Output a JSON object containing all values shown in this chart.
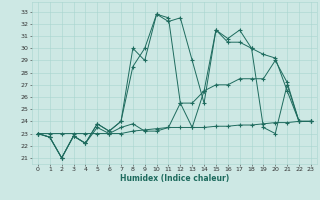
{
  "title": "",
  "xlabel": "Humidex (Indice chaleur)",
  "bg_color": "#cde8e4",
  "grid_color": "#a8d5cf",
  "line_color": "#1e6b5e",
  "xlim": [
    -0.5,
    23.5
  ],
  "ylim": [
    20.5,
    33.8
  ],
  "xticks": [
    0,
    1,
    2,
    3,
    4,
    5,
    6,
    7,
    8,
    9,
    10,
    11,
    12,
    13,
    14,
    15,
    16,
    17,
    18,
    19,
    20,
    21,
    22,
    23
  ],
  "yticks": [
    21,
    22,
    23,
    24,
    25,
    26,
    27,
    28,
    29,
    30,
    31,
    32,
    33
  ],
  "series": [
    [
      23,
      22.7,
      21.0,
      22.8,
      22.2,
      23.8,
      23.2,
      24.0,
      28.5,
      30.0,
      32.8,
      32.2,
      32.5,
      29.0,
      25.5,
      31.5,
      30.8,
      31.5,
      30.0,
      29.5,
      29.2,
      26.5,
      24.0,
      24.0
    ],
    [
      23,
      22.7,
      21.0,
      22.8,
      22.2,
      23.8,
      23.2,
      24.0,
      30.0,
      29.0,
      32.8,
      32.5,
      25.5,
      23.5,
      26.5,
      31.5,
      30.5,
      30.5,
      30.0,
      23.5,
      23.0,
      27.0,
      24.0,
      24.0
    ],
    [
      23,
      23.0,
      23.0,
      23.0,
      23.0,
      23.0,
      23.0,
      23.0,
      23.2,
      23.3,
      23.4,
      23.5,
      23.5,
      23.5,
      23.5,
      23.6,
      23.6,
      23.7,
      23.7,
      23.8,
      23.9,
      23.9,
      24.0,
      24.0
    ],
    [
      23,
      22.7,
      21.0,
      22.8,
      22.2,
      23.5,
      23.0,
      23.5,
      23.8,
      23.2,
      23.2,
      23.5,
      25.5,
      25.5,
      26.5,
      27.0,
      27.0,
      27.5,
      27.5,
      27.5,
      29.0,
      27.2,
      24.0,
      24.0
    ]
  ]
}
